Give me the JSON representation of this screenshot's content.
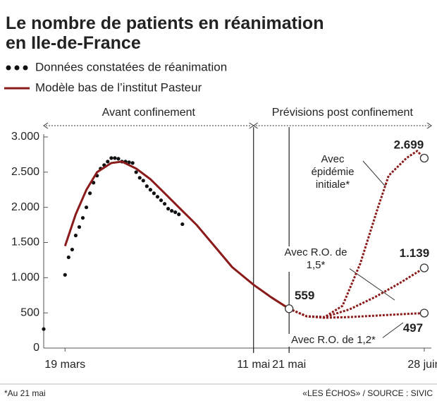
{
  "chart_data": {
    "type": "line",
    "title": "Le nombre de patients en réanimation en Ile-de-France",
    "periods": [
      "Avant confinement",
      "Prévisions post confinement"
    ],
    "footnote": "*Au 21 mai",
    "source": "«LES ÉCHOS» / SOURCE : SIVIC",
    "xlim": [
      "03-13",
      "06-30"
    ],
    "xticks": [
      {
        "value": "03-19",
        "label": "19 mars"
      },
      {
        "value": "05-11",
        "label": "11 mai"
      },
      {
        "value": "05-21",
        "label": "21 mai"
      },
      {
        "value": "06-28",
        "label": "28 juin"
      }
    ],
    "ylim": [
      0,
      3000
    ],
    "yticks": [
      0,
      {
        "value": 500,
        "label": "500"
      },
      {
        "value": 1000,
        "label": "1.000"
      },
      {
        "value": 1500,
        "label": "1.500"
      },
      {
        "value": 2000,
        "label": "2.000"
      },
      {
        "value": 2500,
        "label": "2.500"
      },
      {
        "value": 3000,
        "label": "3.000"
      }
    ],
    "series": [
      {
        "name": "Données constatées de réanimation",
        "color": "#111111",
        "style": "dots",
        "x": [
          "03-13",
          "03-19",
          "03-20",
          "03-21",
          "03-22",
          "03-23",
          "03-24",
          "03-25",
          "03-26",
          "03-27",
          "03-28",
          "03-29",
          "03-30",
          "03-31",
          "04-01",
          "04-02",
          "04-03",
          "04-04",
          "04-05",
          "04-06",
          "04-07",
          "04-08",
          "04-09",
          "04-10",
          "04-11",
          "04-12",
          "04-13",
          "04-14",
          "04-15",
          "04-16",
          "04-17",
          "04-18",
          "04-19",
          "04-20",
          "04-21"
        ],
        "values": [
          270,
          1040,
          1290,
          1400,
          1600,
          1720,
          1850,
          2000,
          2200,
          2350,
          2450,
          2550,
          2600,
          2650,
          2700,
          2700,
          2690,
          2650,
          2650,
          2640,
          2630,
          2500,
          2420,
          2380,
          2300,
          2250,
          2200,
          2150,
          2100,
          2050,
          1980,
          1950,
          1930,
          1900,
          1760
        ]
      },
      {
        "name": "Modèle bas de l’institut Pasteur",
        "color": "#8b1a1a",
        "style": "solid",
        "x": [
          "03-19",
          "03-22",
          "03-25",
          "03-28",
          "04-01",
          "04-04",
          "04-08",
          "04-12",
          "04-16",
          "04-20",
          "04-25",
          "04-30",
          "05-05",
          "05-11",
          "05-16",
          "05-21"
        ],
        "values": [
          1450,
          1900,
          2250,
          2500,
          2630,
          2650,
          2550,
          2400,
          2200,
          2000,
          1750,
          1450,
          1150,
          900,
          720,
          559
        ]
      },
      {
        "name": "Avec épidémie initiale*",
        "color": "#8b1a1a",
        "style": "dashed",
        "x": [
          "05-21",
          "05-26",
          "05-31",
          "06-05",
          "06-10",
          "06-15",
          "06-18",
          "06-23",
          "06-26",
          "06-28"
        ],
        "values": [
          559,
          450,
          440,
          600,
          1200,
          2000,
          2450,
          2700,
          2800,
          2699
        ],
        "value_labels": [
          null,
          null,
          null,
          null,
          null,
          null,
          null,
          null,
          null,
          "2.699"
        ]
      },
      {
        "name": "Avec R.O. de 1,5*",
        "color": "#8b1a1a",
        "style": "dashed",
        "x": [
          "05-21",
          "05-26",
          "05-31",
          "06-07",
          "06-14",
          "06-21",
          "06-28"
        ],
        "values": [
          559,
          450,
          440,
          550,
          720,
          920,
          1139
        ],
        "value_labels": [
          null,
          null,
          null,
          null,
          null,
          null,
          "1.139"
        ]
      },
      {
        "name": "Avec R.O. de 1,2*",
        "color": "#8b1a1a",
        "style": "dashed",
        "x": [
          "05-21",
          "05-26",
          "05-31",
          "06-07",
          "06-14",
          "06-21",
          "06-28"
        ],
        "values": [
          559,
          450,
          430,
          440,
          460,
          480,
          497
        ],
        "value_labels": [
          null,
          null,
          null,
          null,
          null,
          null,
          "497"
        ]
      }
    ]
  }
}
